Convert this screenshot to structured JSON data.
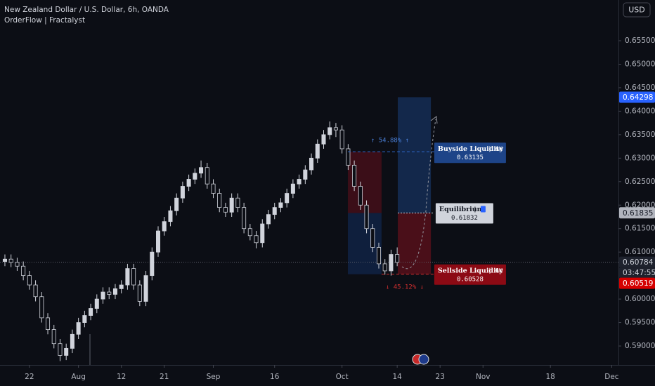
{
  "chart_data": {
    "type": "candlestick",
    "title": "New Zealand Dollar / U.S. Dollar, 6h, OANDA",
    "subtitle": "OrderFlow | Fractalyst",
    "currency": "USD",
    "up_color": "#d1d4dc",
    "down_color": "#0c0e15",
    "x": [
      -4,
      -3,
      -2,
      -1,
      0,
      1,
      2,
      3,
      4,
      5,
      6,
      7,
      8,
      9,
      10,
      11,
      12,
      13,
      14,
      15,
      16,
      17,
      18,
      19,
      20,
      21,
      22,
      23,
      24,
      25,
      26,
      27,
      28,
      29,
      30,
      31,
      32,
      33,
      34,
      35,
      36,
      37,
      38,
      39,
      40,
      41,
      42,
      43,
      44,
      45,
      46,
      47,
      48,
      49,
      50,
      51,
      52,
      53,
      54,
      55,
      56,
      57,
      58,
      59,
      60
    ],
    "open": [
      0.608,
      0.6085,
      0.6078,
      0.607,
      0.605,
      0.603,
      0.6005,
      0.596,
      0.5935,
      0.5905,
      0.588,
      0.5895,
      0.5925,
      0.595,
      0.5965,
      0.598,
      0.6,
      0.6015,
      0.601,
      0.6022,
      0.603,
      0.6065,
      0.603,
      0.5995,
      0.605,
      0.61,
      0.6145,
      0.6165,
      0.6188,
      0.6215,
      0.624,
      0.6255,
      0.6268,
      0.628,
      0.6245,
      0.6225,
      0.6195,
      0.6185,
      0.6215,
      0.6195,
      0.615,
      0.6135,
      0.612,
      0.616,
      0.618,
      0.6195,
      0.6205,
      0.6225,
      0.6245,
      0.6255,
      0.6275,
      0.63,
      0.633,
      0.635,
      0.6365,
      0.636,
      0.632,
      0.6285,
      0.624,
      0.62,
      0.615,
      0.611,
      0.6075,
      0.606,
      0.6095
    ],
    "high": [
      0.6095,
      0.6095,
      0.6088,
      0.608,
      0.606,
      0.604,
      0.6015,
      0.597,
      0.5945,
      0.5915,
      0.5905,
      0.5935,
      0.596,
      0.5975,
      0.599,
      0.601,
      0.6025,
      0.6025,
      0.6032,
      0.604,
      0.6075,
      0.6075,
      0.604,
      0.606,
      0.611,
      0.6155,
      0.6175,
      0.6198,
      0.6225,
      0.625,
      0.6265,
      0.6278,
      0.6295,
      0.629,
      0.6255,
      0.6235,
      0.6205,
      0.6225,
      0.6225,
      0.6205,
      0.616,
      0.6145,
      0.617,
      0.619,
      0.6205,
      0.6215,
      0.6235,
      0.6255,
      0.6265,
      0.6285,
      0.631,
      0.634,
      0.636,
      0.6378,
      0.6375,
      0.637,
      0.633,
      0.6295,
      0.625,
      0.621,
      0.616,
      0.612,
      0.6085,
      0.6105,
      0.611
    ],
    "low": [
      0.607,
      0.6068,
      0.606,
      0.604,
      0.602,
      0.5995,
      0.595,
      0.5925,
      0.5895,
      0.5868,
      0.587,
      0.5885,
      0.5915,
      0.594,
      0.5955,
      0.597,
      0.599,
      0.6,
      0.6,
      0.6012,
      0.602,
      0.602,
      0.5985,
      0.5985,
      0.604,
      0.609,
      0.6135,
      0.6155,
      0.6178,
      0.6205,
      0.623,
      0.6245,
      0.6258,
      0.6235,
      0.6215,
      0.6185,
      0.6175,
      0.6175,
      0.6185,
      0.614,
      0.6125,
      0.6108,
      0.611,
      0.615,
      0.617,
      0.6185,
      0.6195,
      0.6215,
      0.6235,
      0.6245,
      0.6265,
      0.629,
      0.632,
      0.634,
      0.6345,
      0.631,
      0.6275,
      0.623,
      0.619,
      0.614,
      0.61,
      0.6065,
      0.6052,
      0.605,
      0.607
    ],
    "close": [
      0.6085,
      0.6078,
      0.607,
      0.605,
      0.603,
      0.6005,
      0.596,
      0.5935,
      0.5905,
      0.588,
      0.5895,
      0.5925,
      0.595,
      0.5965,
      0.598,
      0.6,
      0.6015,
      0.601,
      0.6022,
      0.603,
      0.6065,
      0.603,
      0.5995,
      0.605,
      0.61,
      0.6145,
      0.6165,
      0.6188,
      0.6215,
      0.624,
      0.6255,
      0.6268,
      0.628,
      0.6245,
      0.6225,
      0.6195,
      0.6185,
      0.6215,
      0.6195,
      0.615,
      0.6135,
      0.612,
      0.616,
      0.618,
      0.6195,
      0.6205,
      0.6225,
      0.6245,
      0.6255,
      0.6275,
      0.63,
      0.633,
      0.635,
      0.6365,
      0.636,
      0.632,
      0.6285,
      0.624,
      0.62,
      0.615,
      0.611,
      0.6075,
      0.606,
      0.6095,
      0.6078
    ],
    "xlim": [
      -4.8,
      96.1
    ],
    "ylim": [
      0.58597,
      0.66367
    ],
    "grid": false,
    "xticks": [
      {
        "value": 0,
        "label": "22"
      },
      {
        "value": 8,
        "label": "Aug"
      },
      {
        "value": 15,
        "label": "12"
      },
      {
        "value": 22,
        "label": "21"
      },
      {
        "value": 30,
        "label": "Sep"
      },
      {
        "value": 40,
        "label": "16"
      },
      {
        "value": 51,
        "label": "Oct"
      },
      {
        "value": 60,
        "label": "14"
      },
      {
        "value": 67,
        "label": "23"
      },
      {
        "value": 74,
        "label": "Nov"
      },
      {
        "value": 85,
        "label": "18"
      },
      {
        "value": 95,
        "label": "Dec"
      }
    ],
    "yticks": [
      {
        "value": 0.655,
        "label": "0.65500"
      },
      {
        "value": 0.65,
        "label": "0.65000"
      },
      {
        "value": 0.645,
        "label": "0.64500"
      },
      {
        "value": 0.64,
        "label": "0.64000"
      },
      {
        "value": 0.635,
        "label": "0.63500"
      },
      {
        "value": 0.63,
        "label": "0.63000"
      },
      {
        "value": 0.625,
        "label": "0.62500"
      },
      {
        "value": 0.62,
        "label": "0.62000"
      },
      {
        "value": 0.615,
        "label": "0.61500"
      },
      {
        "value": 0.61,
        "label": "0.61000"
      },
      {
        "value": 0.6,
        "label": "0.60000"
      },
      {
        "value": 0.595,
        "label": "0.59500"
      },
      {
        "value": 0.59,
        "label": "0.59000"
      }
    ],
    "price_tags": [
      {
        "value": 0.64298,
        "color": "#2962ff",
        "text_color": "#ffffff"
      },
      {
        "value": 0.61835,
        "color": "#b2b5be",
        "text_color": "#131722"
      },
      {
        "value": 0.60784,
        "color": "#1e222d",
        "text_color": "#d1d4dc",
        "countdown": "03:47:55",
        "line": true
      },
      {
        "value": 0.60519,
        "color": "#d50000",
        "text_color": "#ffffff"
      }
    ],
    "zones": [
      {
        "x0": 51.95,
        "x1": 57.45,
        "top": 0.63135,
        "bottom": 0.61832,
        "color": "#3b0e18"
      },
      {
        "x0": 51.95,
        "x1": 57.45,
        "top": 0.61832,
        "bottom": 0.60528,
        "color": "#0f1f3d"
      },
      {
        "x0": 60.1,
        "x1": 65.5,
        "top": 0.64298,
        "bottom": 0.61832,
        "color": "#13284b"
      },
      {
        "x0": 60.1,
        "x1": 65.5,
        "top": 0.61832,
        "bottom": 0.60528,
        "color": "#4a0f19"
      }
    ],
    "levels": [
      {
        "name": "Buyside Liquidity",
        "timeframe": "6H",
        "value": 0.63135,
        "x0": 51.95,
        "x1": 66.05,
        "color": "#1e4488",
        "text_color": "#ffffff",
        "line_color": "#2f6bd1"
      },
      {
        "name": "Equilibrium",
        "value": 0.61832,
        "x0": 60.1,
        "x1": 66.05,
        "color": "#d1d4dc",
        "text_color": "#131722",
        "line_color": "#d1d4dc"
      },
      {
        "name": "Sellside Liquidity",
        "timeframe": "6H",
        "value": 0.60528,
        "x0": 57.45,
        "x1": 66.05,
        "color": "#8c0a14",
        "text_color": "#ffffff",
        "line_color": "#d32f2f"
      }
    ],
    "percent_labels": [
      "↑ 54.88% ↑",
      "↓ 45.12% ↓"
    ]
  }
}
